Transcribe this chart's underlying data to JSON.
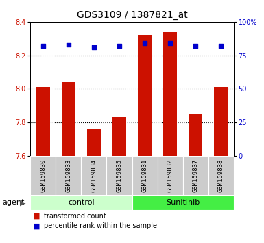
{
  "title": "GDS3109 / 1387821_at",
  "samples": [
    "GSM159830",
    "GSM159833",
    "GSM159834",
    "GSM159835",
    "GSM159831",
    "GSM159832",
    "GSM159837",
    "GSM159838"
  ],
  "red_values": [
    8.01,
    8.04,
    7.76,
    7.83,
    8.32,
    8.34,
    7.85,
    8.01
  ],
  "blue_values": [
    82,
    83,
    81,
    82,
    84,
    84,
    82,
    82
  ],
  "ylim_left": [
    7.6,
    8.4
  ],
  "ylim_right": [
    0,
    100
  ],
  "yticks_left": [
    7.6,
    7.8,
    8.0,
    8.2,
    8.4
  ],
  "yticks_right": [
    0,
    25,
    50,
    75,
    100
  ],
  "ytick_labels_right": [
    "0",
    "25",
    "50",
    "75",
    "100%"
  ],
  "bar_color": "#cc1100",
  "dot_color": "#0000cc",
  "plot_bg": "#ffffff",
  "grid_color": "black",
  "legend_red": "transformed count",
  "legend_blue": "percentile rank within the sample",
  "left_tick_color": "#cc1100",
  "right_tick_color": "#0000cc",
  "bar_width": 0.55,
  "dot_size": 22,
  "base_value": 7.6,
  "control_color": "#ccffcc",
  "sunitinib_color": "#44ee44",
  "sample_box_color": "#cccccc",
  "title_fontsize": 10,
  "tick_fontsize": 7,
  "label_fontsize": 6.5,
  "group_fontsize": 8,
  "legend_fontsize": 7,
  "agent_fontsize": 8
}
